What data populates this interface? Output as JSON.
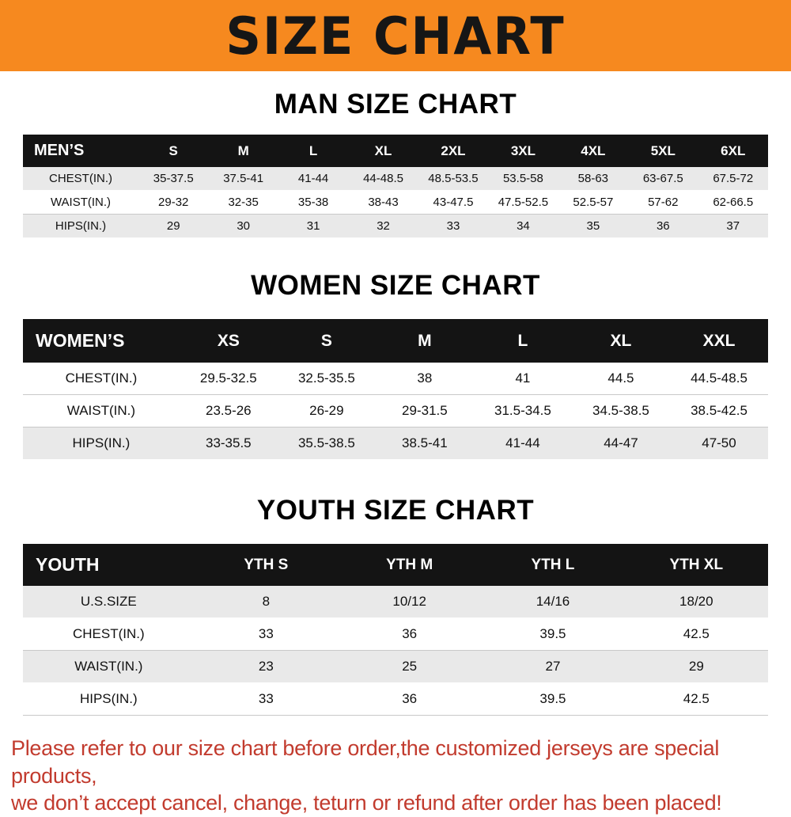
{
  "banner": {
    "title": "SIZE CHART"
  },
  "colors": {
    "banner_bg": "#f6891f",
    "table_header_bg": "#141414",
    "row_stripe": "#e9e9e9",
    "footer_text": "#c23b2e"
  },
  "sections": [
    {
      "heading": "MAN SIZE CHART",
      "table": {
        "header": [
          "MEN’S",
          "S",
          "M",
          "L",
          "XL",
          "2XL",
          "3XL",
          "4XL",
          "5XL",
          "6XL"
        ],
        "rows": [
          {
            "label": "CHEST(IN.)",
            "values": [
              "35-37.5",
              "37.5-41",
              "41-44",
              "44-48.5",
              "48.5-53.5",
              "53.5-58",
              "58-63",
              "63-67.5",
              "67.5-72"
            ]
          },
          {
            "label": "WAIST(IN.)",
            "values": [
              "29-32",
              "32-35",
              "35-38",
              "38-43",
              "43-47.5",
              "47.5-52.5",
              "52.5-57",
              "57-62",
              "62-66.5"
            ]
          },
          {
            "label": "HIPS(IN.)",
            "values": [
              "29",
              "30",
              "31",
              "32",
              "33",
              "34",
              "35",
              "36",
              "37"
            ]
          }
        ]
      }
    },
    {
      "heading": "WOMEN SIZE CHART",
      "table": {
        "header": [
          "WOMEN’S",
          "XS",
          "S",
          "M",
          "L",
          "XL",
          "XXL"
        ],
        "rows": [
          {
            "label": "CHEST(IN.)",
            "values": [
              "29.5-32.5",
              "32.5-35.5",
              "38",
              "41",
              "44.5",
              "44.5-48.5"
            ]
          },
          {
            "label": "WAIST(IN.)",
            "values": [
              "23.5-26",
              "26-29",
              "29-31.5",
              "31.5-34.5",
              "34.5-38.5",
              "38.5-42.5"
            ]
          },
          {
            "label": "HIPS(IN.)",
            "values": [
              "33-35.5",
              "35.5-38.5",
              "38.5-41",
              "41-44",
              "44-47",
              "47-50"
            ]
          }
        ]
      }
    },
    {
      "heading": "YOUTH SIZE CHART",
      "table": {
        "header": [
          "YOUTH",
          "YTH S",
          "YTH M",
          "YTH L",
          "YTH XL"
        ],
        "rows": [
          {
            "label": "U.S.SIZE",
            "values": [
              "8",
              "10/12",
              "14/16",
              "18/20"
            ]
          },
          {
            "label": "CHEST(IN.)",
            "values": [
              "33",
              "36",
              "39.5",
              "42.5"
            ]
          },
          {
            "label": "WAIST(IN.)",
            "values": [
              "23",
              "25",
              "27",
              "29"
            ]
          },
          {
            "label": "HIPS(IN.)",
            "values": [
              "33",
              "36",
              "39.5",
              "42.5"
            ]
          }
        ]
      }
    }
  ],
  "footer": {
    "line1": "Please refer to our size chart before order,the customized jerseys are special products,",
    "line2": "we don’t accept cancel, change, teturn or refund after order has been placed!"
  }
}
